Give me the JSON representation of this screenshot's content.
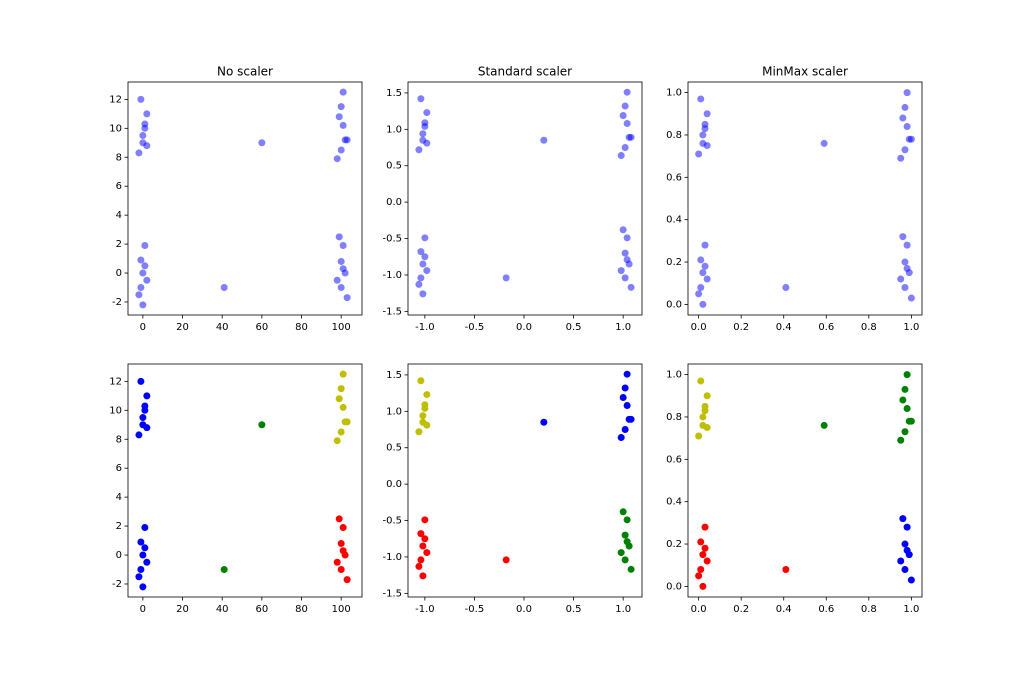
{
  "chart_data": [
    {
      "type": "scatter",
      "title": "No scaler",
      "xlim": [
        -7.5,
        110.5
      ],
      "ylim": [
        -2.9,
        13.2
      ],
      "xticks": [
        0,
        20,
        40,
        60,
        80,
        100
      ],
      "yticks": [
        -2,
        0,
        2,
        4,
        6,
        8,
        10,
        12
      ],
      "series": [
        {
          "color": "#0000ff",
          "alpha": 0.5,
          "x": [
            -1,
            1,
            0,
            2,
            -2,
            1,
            0,
            2,
            101,
            99,
            102,
            100,
            98,
            101,
            103,
            100,
            1,
            -1,
            0,
            2,
            -2,
            0,
            1,
            -1,
            99,
            101,
            100,
            102,
            98,
            100,
            103,
            101,
            60,
            41
          ],
          "y": [
            12,
            10.3,
            9.5,
            11,
            8.3,
            10,
            9,
            8.8,
            12.5,
            10.8,
            9.2,
            11.5,
            7.9,
            10.2,
            9.2,
            8.5,
            1.9,
            0.9,
            0,
            -0.5,
            -1.5,
            -2.2,
            0.5,
            -1,
            2.5,
            1.9,
            0.8,
            0,
            -0.5,
            -1,
            -1.7,
            0.3,
            9,
            -1
          ]
        }
      ]
    },
    {
      "type": "scatter",
      "title": "Standard scaler",
      "xlim": [
        -1.17,
        1.19
      ],
      "ylim": [
        -1.55,
        1.65
      ],
      "xticks": [
        {
          "value": -1,
          "label": "-1.0"
        },
        -0.5,
        {
          "value": 0,
          "label": "0.0"
        },
        0.5,
        {
          "value": 1,
          "label": "1.0"
        }
      ],
      "yticks": [
        -1.5,
        {
          "value": -1,
          "label": "-1.0"
        },
        -0.5,
        {
          "value": 0,
          "label": "0.0"
        },
        0.5,
        {
          "value": 1,
          "label": "1.0"
        },
        1.5
      ],
      "series": [
        {
          "color": "#0000ff",
          "alpha": 0.5,
          "x": [
            -1.04,
            -1.0,
            -1.02,
            -0.98,
            -1.06,
            -1.0,
            -1.02,
            -0.98,
            1.04,
            1.0,
            1.06,
            1.02,
            0.98,
            1.04,
            1.08,
            1.02,
            -1.0,
            -1.04,
            -1.02,
            -0.98,
            -1.06,
            -1.02,
            -1.0,
            -1.04,
            1.0,
            1.04,
            1.02,
            1.06,
            0.98,
            1.02,
            1.08,
            1.04,
            0.2,
            -0.18
          ],
          "y": [
            1.42,
            1.09,
            0.94,
            1.23,
            0.72,
            1.04,
            0.85,
            0.81,
            1.51,
            1.19,
            0.89,
            1.32,
            0.64,
            1.08,
            0.89,
            0.75,
            -0.49,
            -0.68,
            -0.85,
            -0.94,
            -1.13,
            -1.26,
            -0.75,
            -1.04,
            -0.38,
            -0.49,
            -0.7,
            -0.85,
            -0.94,
            -1.04,
            -1.17,
            -0.79,
            0.85,
            -1.04
          ]
        }
      ]
    },
    {
      "type": "scatter",
      "title": "MinMax scaler",
      "xlim": [
        -0.05,
        1.05
      ],
      "ylim": [
        -0.05,
        1.05
      ],
      "xticks": [
        {
          "value": 0,
          "label": "0.0"
        },
        0.2,
        0.4,
        0.6,
        0.8,
        {
          "value": 1,
          "label": "1.0"
        }
      ],
      "yticks": [
        {
          "value": 0,
          "label": "0.0"
        },
        0.2,
        0.4,
        0.6,
        0.8,
        {
          "value": 1,
          "label": "1.0"
        }
      ],
      "series": [
        {
          "color": "#0000ff",
          "alpha": 0.5,
          "x": [
            0.01,
            0.03,
            0.02,
            0.04,
            0,
            0.03,
            0.02,
            0.04,
            0.98,
            0.96,
            0.99,
            0.97,
            0.95,
            0.98,
            1.0,
            0.97,
            0.03,
            0.01,
            0.02,
            0.04,
            0,
            0.02,
            0.03,
            0.01,
            0.96,
            0.98,
            0.97,
            0.99,
            0.95,
            0.97,
            1.0,
            0.98,
            0.59,
            0.41
          ],
          "y": [
            0.97,
            0.85,
            0.8,
            0.9,
            0.71,
            0.83,
            0.76,
            0.75,
            1.0,
            0.88,
            0.78,
            0.93,
            0.69,
            0.84,
            0.78,
            0.73,
            0.28,
            0.21,
            0.15,
            0.12,
            0.05,
            0,
            0.18,
            0.08,
            0.32,
            0.28,
            0.2,
            0.15,
            0.12,
            0.08,
            0.03,
            0.17,
            0.76,
            0.08
          ]
        }
      ]
    },
    {
      "type": "scatter",
      "xlim": [
        -7.5,
        110.5
      ],
      "ylim": [
        -2.9,
        13.2
      ],
      "xticks": [
        0,
        20,
        40,
        60,
        80,
        100
      ],
      "yticks": [
        -2,
        0,
        2,
        4,
        6,
        8,
        10,
        12
      ],
      "series": [
        {
          "color": "#0000ff",
          "x": [
            -1,
            1,
            0,
            2,
            -2,
            1,
            0,
            2,
            1,
            -1,
            0,
            2,
            -2,
            0,
            1,
            -1
          ],
          "y": [
            12,
            10.3,
            9.5,
            11,
            8.3,
            10,
            9,
            8.8,
            1.9,
            0.9,
            0,
            -0.5,
            -1.5,
            -2.2,
            0.5,
            -1
          ]
        },
        {
          "color": "#bfbf00",
          "x": [
            101,
            99,
            102,
            100,
            98,
            101,
            103,
            100
          ],
          "y": [
            12.5,
            10.8,
            9.2,
            11.5,
            7.9,
            10.2,
            9.2,
            8.5
          ]
        },
        {
          "color": "#ff0000",
          "x": [
            99,
            101,
            100,
            102,
            98,
            100,
            103,
            101
          ],
          "y": [
            2.5,
            1.9,
            0.8,
            0,
            -0.5,
            -1,
            -1.7,
            0.3
          ]
        },
        {
          "color": "#008000",
          "x": [
            60,
            41
          ],
          "y": [
            9,
            -1
          ]
        }
      ]
    },
    {
      "type": "scatter",
      "xlim": [
        -1.17,
        1.19
      ],
      "ylim": [
        -1.55,
        1.65
      ],
      "xticks": [
        {
          "value": -1,
          "label": "-1.0"
        },
        -0.5,
        {
          "value": 0,
          "label": "0.0"
        },
        0.5,
        {
          "value": 1,
          "label": "1.0"
        }
      ],
      "yticks": [
        -1.5,
        {
          "value": -1,
          "label": "-1.0"
        },
        -0.5,
        {
          "value": 0,
          "label": "0.0"
        },
        0.5,
        {
          "value": 1,
          "label": "1.0"
        },
        1.5
      ],
      "series": [
        {
          "color": "#bfbf00",
          "x": [
            -1.04,
            -1.0,
            -1.02,
            -0.98,
            -1.06,
            -1.0,
            -1.02,
            -0.98
          ],
          "y": [
            1.42,
            1.09,
            0.94,
            1.23,
            0.72,
            1.04,
            0.85,
            0.81
          ]
        },
        {
          "color": "#0000ff",
          "x": [
            1.04,
            1.0,
            1.06,
            1.02,
            0.98,
            1.04,
            1.08,
            1.02,
            0.2
          ],
          "y": [
            1.51,
            1.19,
            0.89,
            1.32,
            0.64,
            1.08,
            0.89,
            0.75,
            0.85
          ]
        },
        {
          "color": "#ff0000",
          "x": [
            -1.0,
            -1.04,
            -1.02,
            -0.98,
            -1.06,
            -1.02,
            -1.0,
            -1.04,
            -0.18
          ],
          "y": [
            -0.49,
            -0.68,
            -0.85,
            -0.94,
            -1.13,
            -1.26,
            -0.75,
            -1.04,
            -1.04
          ]
        },
        {
          "color": "#008000",
          "x": [
            1.0,
            1.04,
            1.02,
            1.06,
            0.98,
            1.02,
            1.08,
            1.04
          ],
          "y": [
            -0.38,
            -0.49,
            -0.7,
            -0.85,
            -0.94,
            -1.04,
            -1.17,
            -0.79
          ]
        }
      ]
    },
    {
      "type": "scatter",
      "xlim": [
        -0.05,
        1.05
      ],
      "ylim": [
        -0.05,
        1.05
      ],
      "xticks": [
        {
          "value": 0,
          "label": "0.0"
        },
        0.2,
        0.4,
        0.6,
        0.8,
        {
          "value": 1,
          "label": "1.0"
        }
      ],
      "yticks": [
        {
          "value": 0,
          "label": "0.0"
        },
        0.2,
        0.4,
        0.6,
        0.8,
        {
          "value": 1,
          "label": "1.0"
        }
      ],
      "series": [
        {
          "color": "#bfbf00",
          "x": [
            0.01,
            0.03,
            0.02,
            0.04,
            0,
            0.03,
            0.02,
            0.04
          ],
          "y": [
            0.97,
            0.85,
            0.8,
            0.9,
            0.71,
            0.83,
            0.76,
            0.75
          ]
        },
        {
          "color": "#008000",
          "x": [
            0.98,
            0.96,
            0.99,
            0.97,
            0.95,
            0.98,
            1.0,
            0.97,
            0.59
          ],
          "y": [
            1.0,
            0.88,
            0.78,
            0.93,
            0.69,
            0.84,
            0.78,
            0.73,
            0.76
          ]
        },
        {
          "color": "#ff0000",
          "x": [
            0.03,
            0.01,
            0.02,
            0.04,
            0,
            0.02,
            0.03,
            0.01,
            0.41
          ],
          "y": [
            0.28,
            0.21,
            0.15,
            0.12,
            0.05,
            0,
            0.18,
            0.08,
            0.08
          ]
        },
        {
          "color": "#0000ff",
          "x": [
            0.96,
            0.98,
            0.97,
            0.99,
            0.95,
            0.97,
            1.0,
            0.98
          ],
          "y": [
            0.32,
            0.28,
            0.2,
            0.15,
            0.12,
            0.08,
            0.03,
            0.17
          ]
        }
      ]
    }
  ]
}
